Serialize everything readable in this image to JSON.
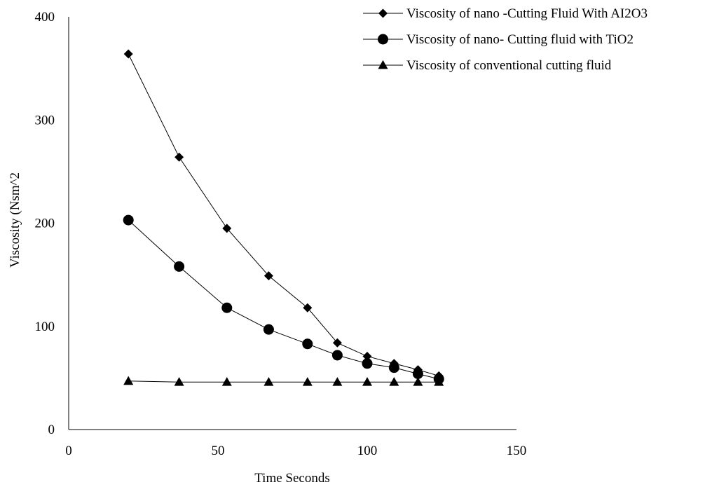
{
  "chart_data": {
    "type": "scatter",
    "title": "",
    "xlabel": "Time Seconds",
    "ylabel": "Viscosity (Nsm^2",
    "xlim": [
      0,
      150
    ],
    "ylim": [
      0,
      400
    ],
    "xticks": [
      0,
      50,
      100,
      150
    ],
    "yticks": [
      0,
      100,
      200,
      300,
      400
    ],
    "grid": false,
    "legend_position": "top-right",
    "line_color": "#000000",
    "x": [
      20,
      37,
      53,
      67,
      80,
      90,
      100,
      109,
      117,
      124
    ],
    "series": [
      {
        "name": "Viscosity of nano -Cutting Fluid With AI2O3",
        "marker": "diamond",
        "values": [
          364,
          264,
          195,
          149,
          118,
          84,
          71,
          64,
          58,
          52
        ]
      },
      {
        "name": "Viscosity of nano- Cutting fluid with TiO2",
        "marker": "circle",
        "values": [
          203,
          158,
          118,
          97,
          83,
          72,
          64,
          60,
          54,
          49
        ]
      },
      {
        "name": "Viscosity of conventional cutting fluid",
        "marker": "triangle",
        "values": [
          47,
          46,
          46,
          46,
          46,
          46,
          46,
          46,
          46,
          46
        ]
      }
    ]
  }
}
